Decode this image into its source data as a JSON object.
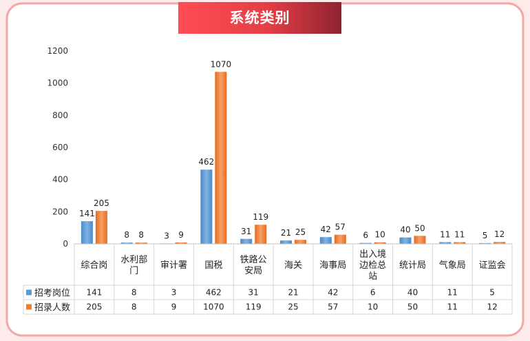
{
  "title": "系统类别",
  "chart_data": {
    "type": "bar",
    "categories": [
      "综合岗",
      "水利部门",
      "审计署",
      "国税",
      "铁路公安局",
      "海关",
      "海事局",
      "出入境边检总站",
      "统计局",
      "气象局",
      "证监会"
    ],
    "series": [
      {
        "name": "招考岗位",
        "color": "#5b9bd5",
        "values": [
          141,
          8,
          3,
          462,
          31,
          21,
          42,
          6,
          40,
          11,
          5
        ]
      },
      {
        "name": "招录人数",
        "color": "#ed7d31",
        "values": [
          205,
          8,
          9,
          1070,
          119,
          25,
          57,
          10,
          50,
          11,
          12
        ]
      }
    ],
    "ylim": [
      0,
      1200
    ],
    "yticks": [
      0,
      200,
      400,
      600,
      800,
      1000,
      1200
    ],
    "grid": false,
    "legend": "data-table"
  }
}
